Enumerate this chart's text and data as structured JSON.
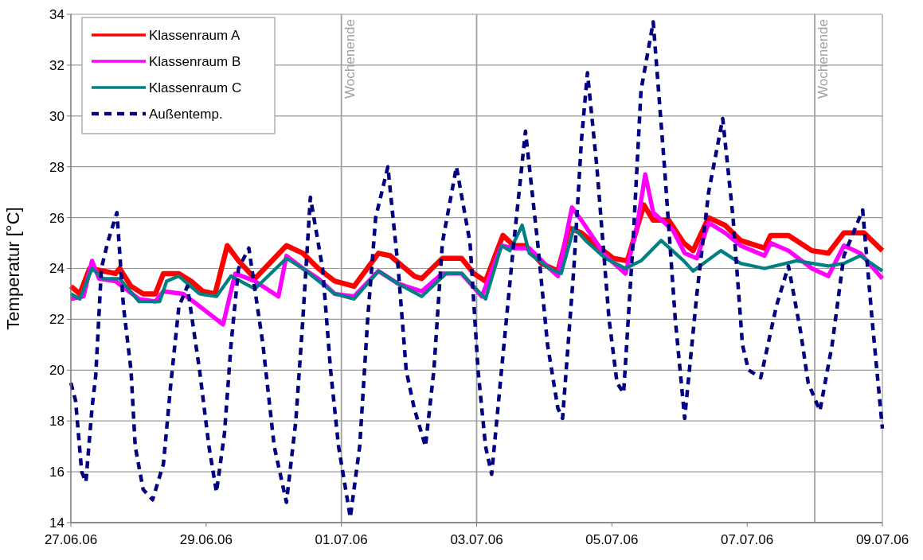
{
  "chart_data": {
    "type": "line",
    "ylabel": "Temperatur [°C]",
    "xlim": [
      "--06-27T00:00",
      "--07-09T00:00"
    ],
    "ylim": [
      14,
      34
    ],
    "xticks": [
      {
        "value": "--06-27",
        "label": "27.06.06"
      },
      {
        "value": "--06-29",
        "label": "29.06.06"
      },
      {
        "value": "--07-01",
        "label": "01.07.06"
      },
      {
        "value": "--07-03",
        "label": "03.07.06"
      },
      {
        "value": "--07-05",
        "label": "05.07.06"
      },
      {
        "value": "--07-07",
        "label": "07.07.06"
      },
      {
        "value": "--07-09",
        "label": "09.07.06"
      }
    ],
    "yticks": [
      14,
      16,
      18,
      20,
      22,
      24,
      26,
      28,
      30,
      32,
      34
    ],
    "grid": "y",
    "legend": "top left",
    "ref_lines": [
      {
        "axis": "x",
        "value": "--07-01",
        "label": "Wochenende",
        "color": "#a0a0a0"
      },
      {
        "axis": "x",
        "value": "--07-03",
        "label": null,
        "color": "#a0a0a0"
      },
      {
        "axis": "x",
        "value": "--07-08",
        "label": "Wochenende",
        "color": "#a0a0a0"
      }
    ],
    "series": [
      {
        "name": "Klassenraum A",
        "color": "#ff0000",
        "line_style": "solid",
        "x": [
          "--06-27T00:00",
          "--06-27T03:10",
          "--06-27T06:40",
          "--06-27T11:30",
          "--06-27T15:50",
          "--06-27T17:20",
          "--06-27T21:20",
          "--06-28T01:40",
          "--06-28T06:00",
          "--06-28T08:50",
          "--06-28T14:20",
          "--06-28T18:40",
          "--06-28T22:50",
          "--06-29T03:10",
          "--06-29T07:30",
          "--06-29T11:30",
          "--06-29T17:20",
          "--06-30T04:30",
          "--06-30T10:20",
          "--06-30T15:50",
          "--06-30T21:40",
          "--07-01T04:30",
          "--07-01T13:10",
          "--07-01T17:20",
          "--07-02T01:50",
          "--07-02T04:30",
          "--07-02T11:50",
          "--07-02T18:40",
          "--07-02T23:00",
          "--07-03T03:10",
          "--07-03T09:20",
          "--07-03T13:10",
          "--07-03T17:20",
          "--07-03T23:00",
          "--07-04T04:50",
          "--07-04T08:50",
          "--07-04T13:10",
          "--07-04T18:40",
          "--07-05T00:30",
          "--07-05T05:30",
          "--07-05T11:20",
          "--07-05T14:40",
          "--07-05T20:10",
          "--07-06T01:30",
          "--07-06T04:50",
          "--07-06T10:20",
          "--07-06T16:10",
          "--07-06T21:40",
          "--07-07T06:10",
          "--07-07T08:20",
          "--07-07T14:40",
          "--07-07T23:00",
          "--07-08T04:50",
          "--07-08T10:20",
          "--07-08T17:30",
          "--07-09T00:00"
        ],
        "values": [
          23.3,
          23,
          24,
          23.9,
          23.8,
          24,
          23.3,
          23,
          23,
          23.8,
          23.8,
          23.5,
          23.1,
          23,
          24.9,
          24.3,
          23.6,
          24.9,
          24.6,
          24,
          23.5,
          23.3,
          24.6,
          24.5,
          23.7,
          23.6,
          24.4,
          24.4,
          23.8,
          23.5,
          25.3,
          24.9,
          24.9,
          24.2,
          23.9,
          25.6,
          25.4,
          24.9,
          24.4,
          24.3,
          26.5,
          25.9,
          25.9,
          25,
          24.7,
          26,
          25.7,
          25.1,
          24.8,
          25.3,
          25.3,
          24.7,
          24.6,
          25.4,
          25.4,
          24.7
        ]
      },
      {
        "name": "Klassenraum B",
        "color": "#ff00ff",
        "line_style": "solid",
        "x": [
          "--06-27T00:00",
          "--06-27T04:30",
          "--06-27T07:30",
          "--06-27T10:00",
          "--06-27T15:50",
          "--06-28T00:10",
          "--06-28T06:00",
          "--06-28T08:50",
          "--06-28T15:50",
          "--06-29T00:10",
          "--06-29T06:00",
          "--06-29T10:20",
          "--06-29T17:20",
          "--06-30T01:40",
          "--06-30T04:30",
          "--06-30T10:20",
          "--06-30T15:50",
          "--06-30T21:40",
          "--07-01T04:30",
          "--07-01T13:10",
          "--07-01T20:10",
          "--07-02T04:30",
          "--07-02T11:50",
          "--07-02T18:40",
          "--07-03T01:50",
          "--07-03T08:50",
          "--07-03T13:10",
          "--07-03T18:40",
          "--07-04T01:50",
          "--07-04T04:50",
          "--07-04T09:50",
          "--07-04T13:10",
          "--07-04T21:40",
          "--07-05T04:50",
          "--07-05T08:50",
          "--07-05T11:50",
          "--07-05T14:40",
          "--07-05T21:40",
          "--07-06T01:50",
          "--07-06T06:10",
          "--07-06T10:20",
          "--07-06T16:10",
          "--07-06T21:40",
          "--07-07T06:10",
          "--07-07T08:20",
          "--07-07T14:40",
          "--07-07T23:00",
          "--07-08T04:50",
          "--07-08T10:20",
          "--07-08T16:10",
          "--07-09T00:00"
        ],
        "values": [
          22.8,
          22.9,
          24.3,
          23.6,
          23.5,
          22.8,
          22.7,
          23.1,
          23,
          22.3,
          21.8,
          23.8,
          23.5,
          22.9,
          24.5,
          24,
          23.6,
          23,
          22.9,
          23.9,
          23.4,
          23.1,
          23.8,
          23.8,
          22.9,
          24.9,
          24.8,
          24.8,
          24,
          23.7,
          26.4,
          25.9,
          24.5,
          23.8,
          25.6,
          27.7,
          26.2,
          25.5,
          24.6,
          24.4,
          25.8,
          25.4,
          24.9,
          24.5,
          25,
          24.7,
          24,
          23.7,
          24.9,
          24.6,
          23.6
        ]
      },
      {
        "name": "Klassenraum C",
        "color": "#008080",
        "line_style": "solid",
        "x": [
          "--06-27T00:00",
          "--06-27T03:10",
          "--06-27T07:30",
          "--06-27T11:30",
          "--06-27T17:20",
          "--06-28T00:10",
          "--06-28T07:30",
          "--06-28T10:00",
          "--06-28T14:20",
          "--06-28T21:40",
          "--06-29T03:40",
          "--06-29T08:50",
          "--06-29T17:20",
          "--06-30T04:30",
          "--06-30T10:20",
          "--06-30T21:40",
          "--07-01T04:30",
          "--07-01T13:10",
          "--07-01T20:10",
          "--07-02T04:30",
          "--07-02T13:10",
          "--07-02T18:40",
          "--07-03T03:10",
          "--07-03T08:50",
          "--07-03T11:50",
          "--07-03T16:10",
          "--07-03T18:40",
          "--07-04T01:50",
          "--07-04T06:00",
          "--07-04T10:30",
          "--07-04T14:40",
          "--07-04T21:40",
          "--07-05T04:50",
          "--07-05T10:20",
          "--07-05T17:30",
          "--07-06T01:30",
          "--07-06T04:50",
          "--07-06T14:40",
          "--07-06T21:40",
          "--07-07T06:10",
          "--07-07T17:30",
          "--07-08T04:50",
          "--07-08T10:20",
          "--07-08T16:10",
          "--07-09T00:00"
        ],
        "values": [
          23,
          22.8,
          24,
          23.6,
          23.6,
          22.7,
          22.7,
          23.5,
          23.7,
          23,
          22.9,
          23.7,
          23.2,
          24.4,
          24,
          23,
          22.8,
          23.9,
          23.4,
          22.9,
          23.8,
          23.8,
          22.8,
          24.9,
          24.7,
          25.7,
          24.6,
          24,
          23.8,
          25.6,
          25.1,
          24.4,
          24,
          24.3,
          25.1,
          24.3,
          23.9,
          24.7,
          24.2,
          24,
          24.3,
          24.1,
          24.2,
          24.5,
          23.9
        ]
      },
      {
        "name": "Außentemp.",
        "color": "#000080",
        "line_style": "dashed",
        "x": [
          "--06-27T00:00",
          "--06-27T01:40",
          "--06-27T03:50",
          "--06-27T05:20",
          "--06-27T07:30",
          "--06-27T08:50",
          "--06-27T10:50",
          "--06-27T13:00",
          "--06-27T16:20",
          "--06-27T18:40",
          "--06-27T21:20",
          "--06-27T22:50",
          "--06-28T01:40",
          "--06-28T05:00",
          "--06-28T08:50",
          "--06-28T11:30",
          "--06-28T14:20",
          "--06-28T17:20",
          "--06-28T21:40",
          "--06-29T01:00",
          "--06-29T03:40",
          "--06-29T06:30",
          "--06-29T08:50",
          "--06-29T11:30",
          "--06-29T15:10",
          "--06-29T20:10",
          "--06-30T00:10",
          "--06-30T04:30",
          "--06-30T07:50",
          "--06-30T10:20",
          "--06-30T13:00",
          "--06-30T17:20",
          "--06-30T20:10",
          "--06-30T23:00",
          "--07-01T03:10",
          "--07-01T06:30",
          "--07-01T09:20",
          "--07-01T12:10",
          "--07-01T16:30",
          "--07-01T20:10",
          "--07-01T23:00",
          "--07-02T01:50",
          "--07-02T05:50",
          "--07-02T08:50",
          "--07-02T11:50",
          "--07-02T16:50",
          "--07-02T21:40",
          "--07-03T00:30",
          "--07-03T03:10",
          "--07-03T05:20",
          "--07-03T08:50",
          "--07-03T13:10",
          "--07-03T17:20",
          "--07-03T21:40",
          "--07-04T01:10",
          "--07-04T04:50",
          "--07-04T06:30",
          "--07-04T10:30",
          "--07-04T13:10",
          "--07-04T15:20",
          "--07-04T18:40",
          "--07-04T23:00",
          "--07-05T01:50",
          "--07-05T04:10",
          "--07-05T07:30",
          "--07-05T10:20",
          "--07-05T14:40",
          "--07-05T18:40",
          "--07-05T22:30",
          "--07-06T01:50",
          "--07-06T06:10",
          "--07-06T10:20",
          "--07-06T15:20",
          "--07-06T19:00",
          "--07-06T22:20",
          "--07-07T00:30",
          "--07-07T04:50",
          "--07-07T10:20",
          "--07-07T14:40",
          "--07-07T19:00",
          "--07-07T21:40",
          "--07-08T01:50",
          "--07-08T06:10",
          "--07-08T10:20",
          "--07-08T17:00",
          "--07-08T20:20",
          "--07-09T00:00"
        ],
        "values": [
          19.5,
          18.8,
          16,
          15.6,
          18.5,
          19.8,
          24,
          25,
          26.2,
          22.5,
          20,
          17,
          15.3,
          14.9,
          16.3,
          19.5,
          22.5,
          23.3,
          20,
          17,
          15.2,
          17.5,
          21,
          24,
          24.8,
          21,
          17,
          14.8,
          18,
          22,
          26.8,
          24,
          20,
          17,
          14.2,
          17,
          22,
          26,
          28,
          24,
          20,
          18.5,
          17,
          20,
          25,
          28,
          25,
          20,
          17,
          15.9,
          20,
          25,
          29.4,
          25,
          21,
          18.5,
          18.1,
          24,
          29,
          31.7,
          28,
          22,
          19.5,
          19.1,
          25,
          31,
          33.7,
          28,
          22,
          18.1,
          23,
          27,
          29.9,
          26,
          21,
          20,
          19.7,
          22.5,
          24.1,
          21.5,
          19.5,
          18.4,
          21,
          24.5,
          26.3,
          22,
          17.7
        ]
      }
    ]
  }
}
